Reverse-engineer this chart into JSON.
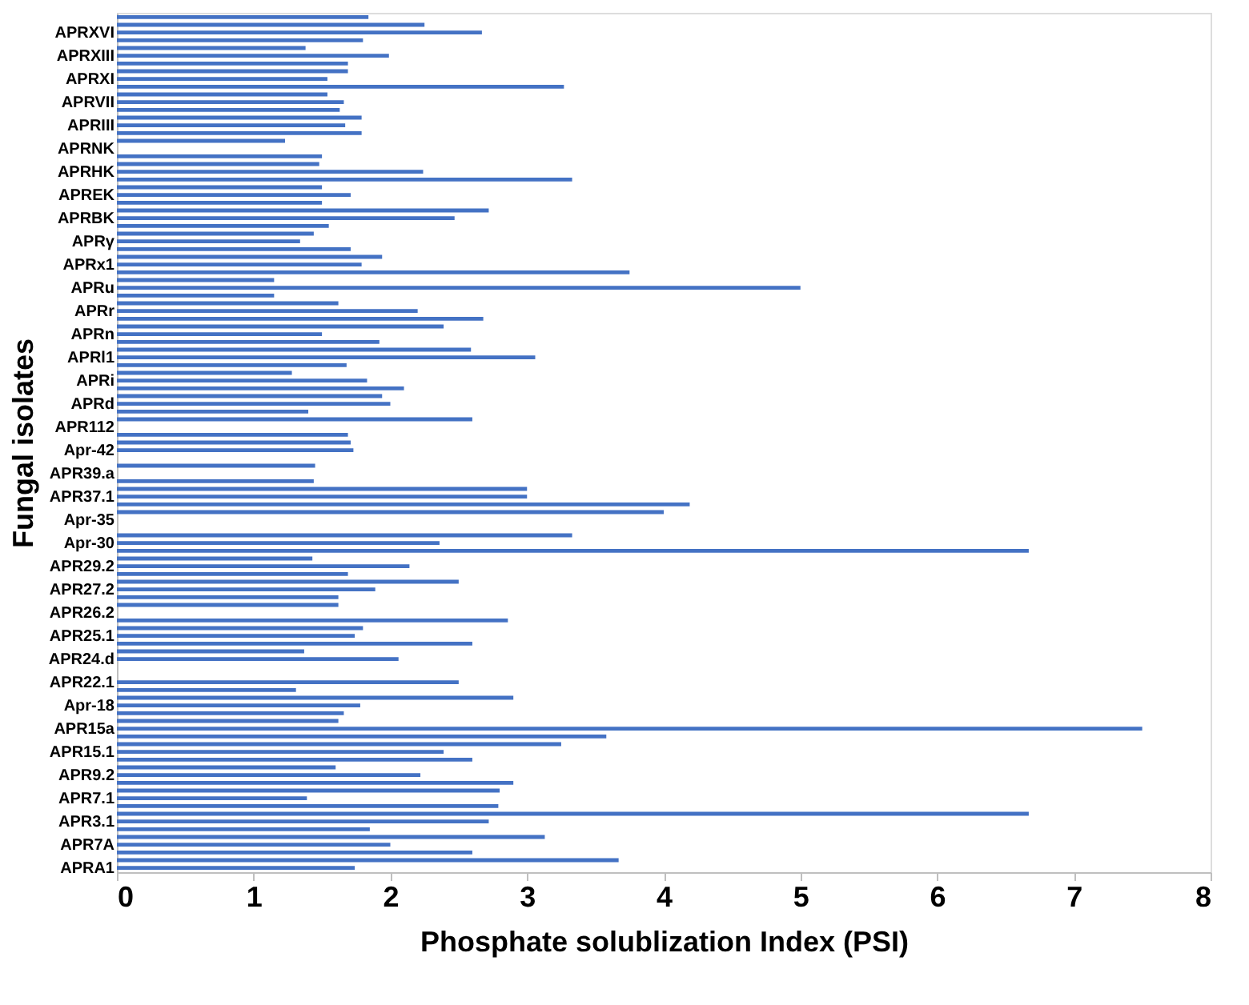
{
  "chart_data": {
    "type": "bar",
    "orientation": "horizontal",
    "xlabel": "Phosphate solublization Index (PSI)",
    "ylabel": "Fungal isolates",
    "categories": [
      null,
      null,
      "APRXVI",
      null,
      null,
      "APRXIII",
      null,
      null,
      "APRXI",
      null,
      null,
      "APRVII",
      null,
      null,
      "APRIII",
      null,
      null,
      "APRNK",
      null,
      null,
      "APRHK",
      null,
      null,
      "APREK",
      null,
      null,
      "APRBK",
      null,
      null,
      "APRγ",
      null,
      null,
      "APRx1",
      null,
      null,
      "APRu",
      null,
      null,
      "APRr",
      null,
      null,
      "APRn",
      null,
      null,
      "APRl1",
      null,
      null,
      "APRi",
      null,
      null,
      "APRd",
      null,
      null,
      "APR112",
      null,
      null,
      "Apr-42",
      null,
      null,
      "APR39.a",
      null,
      null,
      "APR37.1",
      null,
      null,
      "Apr-35",
      null,
      null,
      "Apr-30",
      null,
      null,
      "APR29.2",
      null,
      null,
      "APR27.2",
      null,
      null,
      "APR26.2",
      null,
      null,
      "APR25.1",
      null,
      null,
      "APR24.d",
      null,
      null,
      "APR22.1",
      null,
      null,
      "Apr-18",
      null,
      null,
      "APR15a",
      null,
      null,
      "APR15.1",
      null,
      null,
      "APR9.2",
      null,
      null,
      "APR7.1",
      null,
      null,
      "APR3.1",
      null,
      null,
      "APR7A",
      null,
      null,
      "APRA1"
    ],
    "values": [
      1.84,
      2.25,
      2.67,
      1.8,
      1.38,
      1.99,
      1.69,
      1.69,
      1.54,
      3.27,
      1.54,
      1.66,
      1.63,
      1.79,
      1.67,
      1.79,
      1.23,
      null,
      1.5,
      1.48,
      2.24,
      3.33,
      1.5,
      1.71,
      1.5,
      2.72,
      2.47,
      1.55,
      1.44,
      1.34,
      1.71,
      1.94,
      1.79,
      3.75,
      1.15,
      5.0,
      1.15,
      1.62,
      2.2,
      2.68,
      2.39,
      1.5,
      1.92,
      2.59,
      3.06,
      1.68,
      1.28,
      1.83,
      2.1,
      1.94,
      2.0,
      1.4,
      2.6,
      null,
      1.69,
      1.71,
      1.73,
      null,
      1.45,
      null,
      1.44,
      3.0,
      3.0,
      4.19,
      4.0,
      null,
      null,
      3.33,
      2.36,
      6.67,
      1.43,
      2.14,
      1.69,
      2.5,
      1.89,
      1.62,
      1.62,
      null,
      2.86,
      1.8,
      1.74,
      2.6,
      1.37,
      2.06,
      null,
      null,
      2.5,
      1.31,
      2.9,
      1.78,
      1.66,
      1.62,
      7.5,
      3.58,
      3.25,
      2.39,
      2.6,
      1.6,
      2.22,
      2.9,
      2.8,
      1.39,
      2.79,
      6.67,
      2.72,
      1.85,
      3.13,
      2.0,
      2.6,
      3.67,
      1.74
    ],
    "color": "#4472c4",
    "xlim": [
      0,
      8
    ],
    "xticks": [
      0,
      1,
      2,
      3,
      4,
      5,
      6,
      7,
      8
    ],
    "grid": false
  }
}
